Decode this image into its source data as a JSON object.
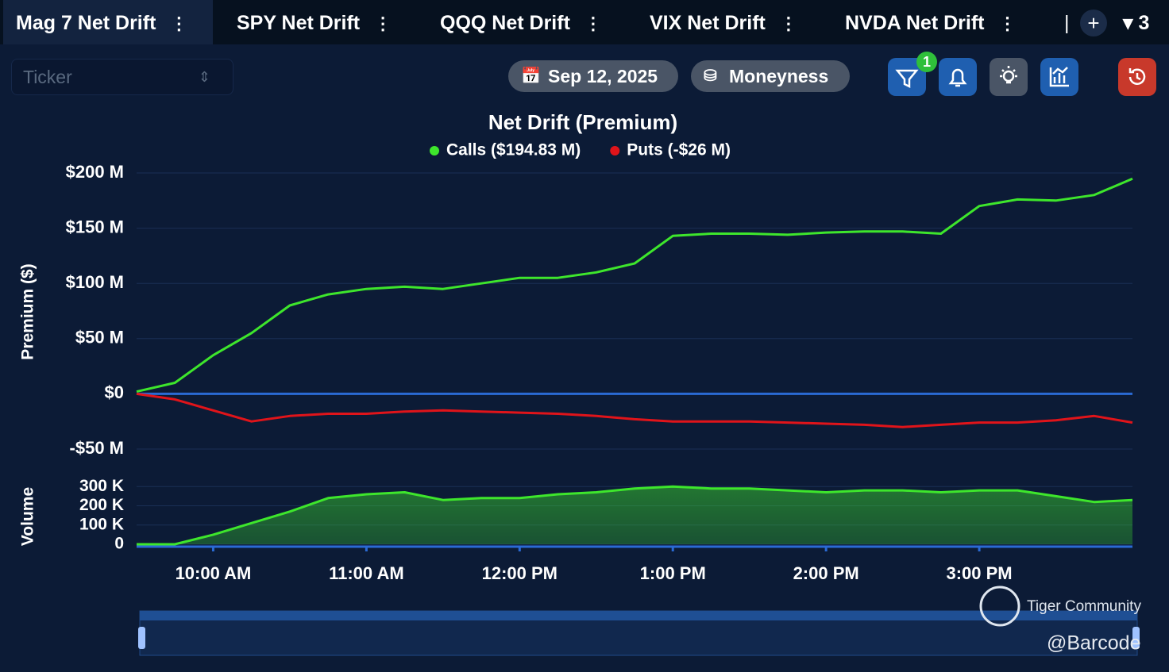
{
  "tabs": [
    "Mag 7 Net Drift",
    "SPY Net Drift",
    "QQQ Net Drift",
    "VIX Net Drift",
    "NVDA Net Drift"
  ],
  "tab_count": "3",
  "toolbar": {
    "ticker_placeholder": "Ticker",
    "date": "Sep 12, 2025",
    "moneyness": "Moneyness",
    "filter_badge": "1"
  },
  "watermark": {
    "brand": "Tiger Community",
    "handle": "@Barcode"
  },
  "chart_data": [
    {
      "type": "line",
      "title": "Net Drift (Premium)",
      "y_label": "Premium ($)",
      "series": [
        {
          "name": "Calls ($194.83 M)",
          "color": "#3ee62c",
          "values": [
            2,
            10,
            35,
            55,
            80,
            90,
            95,
            97,
            95,
            100,
            105,
            105,
            110,
            118,
            143,
            145,
            145,
            144,
            146,
            147,
            147,
            145,
            170,
            176,
            175,
            180,
            194.83
          ]
        },
        {
          "name": "Puts (-$26 M)",
          "color": "#e0141a",
          "values": [
            0,
            -5,
            -15,
            -25,
            -20,
            -18,
            -18,
            -16,
            -15,
            -16,
            -17,
            -18,
            -20,
            -23,
            -25,
            -25,
            -25,
            -26,
            -27,
            -28,
            -30,
            -28,
            -26,
            -26,
            -24,
            -20,
            -26
          ]
        }
      ],
      "ylim": [
        -55,
        205
      ],
      "yticks": [
        {
          "value": 200,
          "label": "$200 M"
        },
        {
          "value": 150,
          "label": "$150 M"
        },
        {
          "value": 100,
          "label": "$100 M"
        },
        {
          "value": 50,
          "label": "$50 M"
        },
        {
          "value": 0,
          "label": "$0"
        },
        {
          "value": -50,
          "label": "-$50 M"
        }
      ],
      "grid": true
    },
    {
      "type": "area",
      "y_label": "Volume",
      "categories": [
        null,
        null,
        "10:00 AM",
        null,
        null,
        null,
        "11:00 AM",
        null,
        null,
        null,
        "12:00 PM",
        null,
        null,
        null,
        "1:00 PM",
        null,
        null,
        null,
        "2:00 PM",
        null,
        null,
        null,
        "3:00 PM",
        null,
        null,
        null,
        null
      ],
      "series": [
        {
          "name": "Volume",
          "color": "#3ee62c",
          "values": [
            0,
            0,
            50,
            110,
            170,
            240,
            260,
            270,
            230,
            240,
            240,
            260,
            270,
            290,
            300,
            290,
            290,
            280,
            270,
            280,
            280,
            270,
            280,
            280,
            250,
            220,
            230
          ]
        }
      ],
      "ylim": [
        0,
        330
      ],
      "yticks": [
        {
          "value": 300,
          "label": "300 K"
        },
        {
          "value": 200,
          "label": "200 K"
        },
        {
          "value": 100,
          "label": "100 K"
        },
        0
      ],
      "grid": true
    }
  ]
}
